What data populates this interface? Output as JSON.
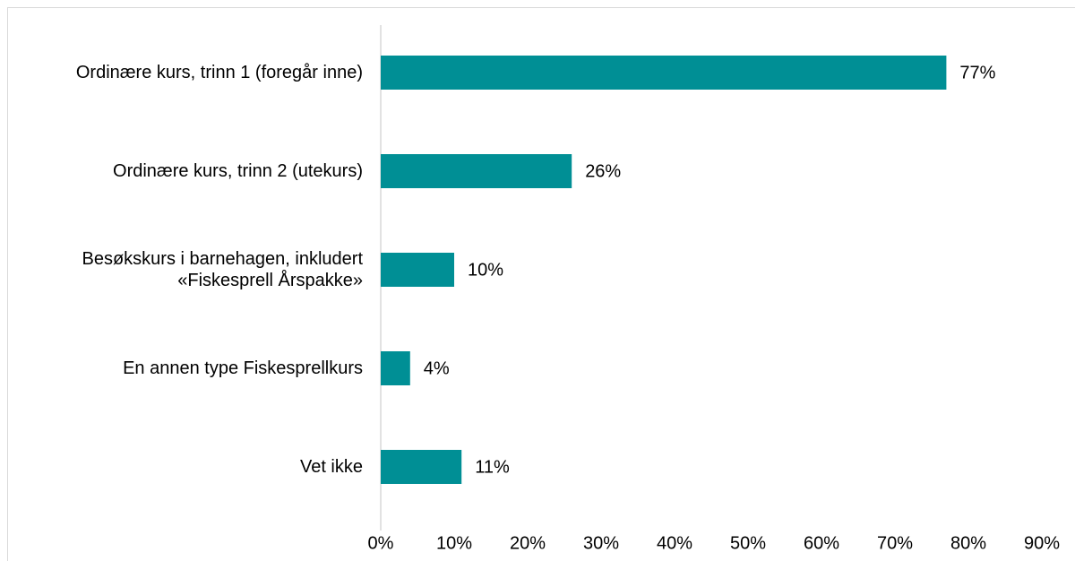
{
  "chart_data": {
    "type": "bar",
    "orientation": "horizontal",
    "categories": [
      "Ordinære kurs, trinn 1 (foregår inne)",
      "Ordinære kurs, trinn 2 (utekurs)",
      "Besøkskurs i barnehagen, inkludert «Fiskesprell Årspakke»",
      "En annen type Fiskesprellkurs",
      "Vet ikke"
    ],
    "values": [
      77,
      26,
      10,
      4,
      11
    ],
    "value_labels": [
      "77%",
      "26%",
      "10%",
      "4%",
      "11%"
    ],
    "color": "#008f95",
    "xlim": [
      0,
      90
    ],
    "xticks": [
      {
        "value": 0,
        "label": "0%"
      },
      {
        "value": 10,
        "label": "10%"
      },
      {
        "value": 20,
        "label": "20%"
      },
      {
        "value": 30,
        "label": "30%"
      },
      {
        "value": 40,
        "label": "40%"
      },
      {
        "value": 50,
        "label": "50%"
      },
      {
        "value": 60,
        "label": "60%"
      },
      {
        "value": 70,
        "label": "70%"
      },
      {
        "value": 80,
        "label": "80%"
      },
      {
        "value": 90,
        "label": "90%"
      }
    ],
    "grid": false
  }
}
